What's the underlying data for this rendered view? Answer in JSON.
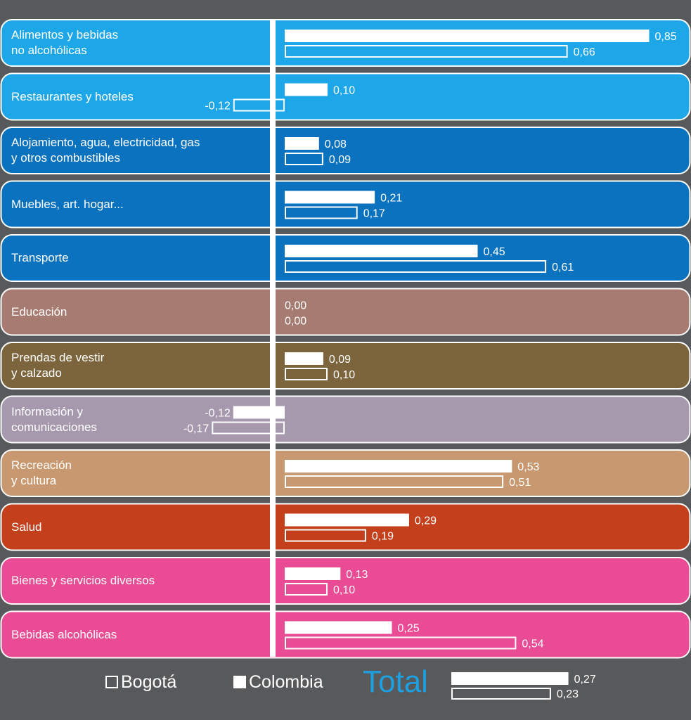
{
  "chart_data": {
    "type": "bar",
    "orientation": "horizontal",
    "categories": [
      "Alimentos y bebidas\nno alcohólicas",
      "Restaurantes y hoteles",
      "Alojamiento, agua, electricidad, gas\ny otros combustibles",
      "Muebles, art. hogar...",
      "Transporte",
      "Educación",
      "Prendas de vestir\ny calzado",
      "Información y\ncomunicaciones",
      "Recreación\ny cultura",
      "Salud",
      "Bienes y servicios diversos",
      "Bebidas alcohólicas"
    ],
    "category_colors": [
      "#1ea7e8",
      "#1ea7e8",
      "#0a72be",
      "#0a72be",
      "#0a72be",
      "#a67c72",
      "#7c653d",
      "#a699ae",
      "#c89970",
      "#c43f1c",
      "#e94b94",
      "#e94b94"
    ],
    "series": [
      {
        "name": "Colombia",
        "style": "filled",
        "values": [
          0.85,
          0.1,
          0.08,
          0.21,
          0.45,
          0.0,
          0.09,
          -0.12,
          0.53,
          0.29,
          0.13,
          0.25
        ]
      },
      {
        "name": "Bogotá",
        "style": "outline",
        "values": [
          0.66,
          -0.12,
          0.09,
          0.17,
          0.61,
          0.0,
          0.1,
          -0.17,
          0.51,
          0.19,
          0.1,
          0.54
        ]
      }
    ],
    "value_labels": {
      "Colombia": [
        "0,85",
        "0,10",
        "0,08",
        "0,21",
        "0,45",
        "0,00",
        "0,09",
        "-0,12",
        "0,53",
        "0,29",
        "0,13",
        "0,25"
      ],
      "Bogotá": [
        "0,66",
        "-0,12",
        "0,09",
        "0,17",
        "0,61",
        "0,00",
        "0,10",
        "-0,17",
        "0,51",
        "0,19",
        "0,10",
        "0,54"
      ]
    },
    "total": {
      "label": "Total",
      "Colombia": 0.27,
      "Bogotá": 0.23,
      "Colombia_label": "0,27",
      "Bogotá_label": "0,23"
    },
    "legend": [
      {
        "name": "Bogotá",
        "style": "outline"
      },
      {
        "name": "Colombia",
        "style": "filled"
      }
    ],
    "legend_position": "bottom",
    "grid": false,
    "colors": {
      "background": "#58595b",
      "bar": "#ffffff",
      "divider": "#ffffff",
      "total": "#1e9fe0"
    }
  }
}
